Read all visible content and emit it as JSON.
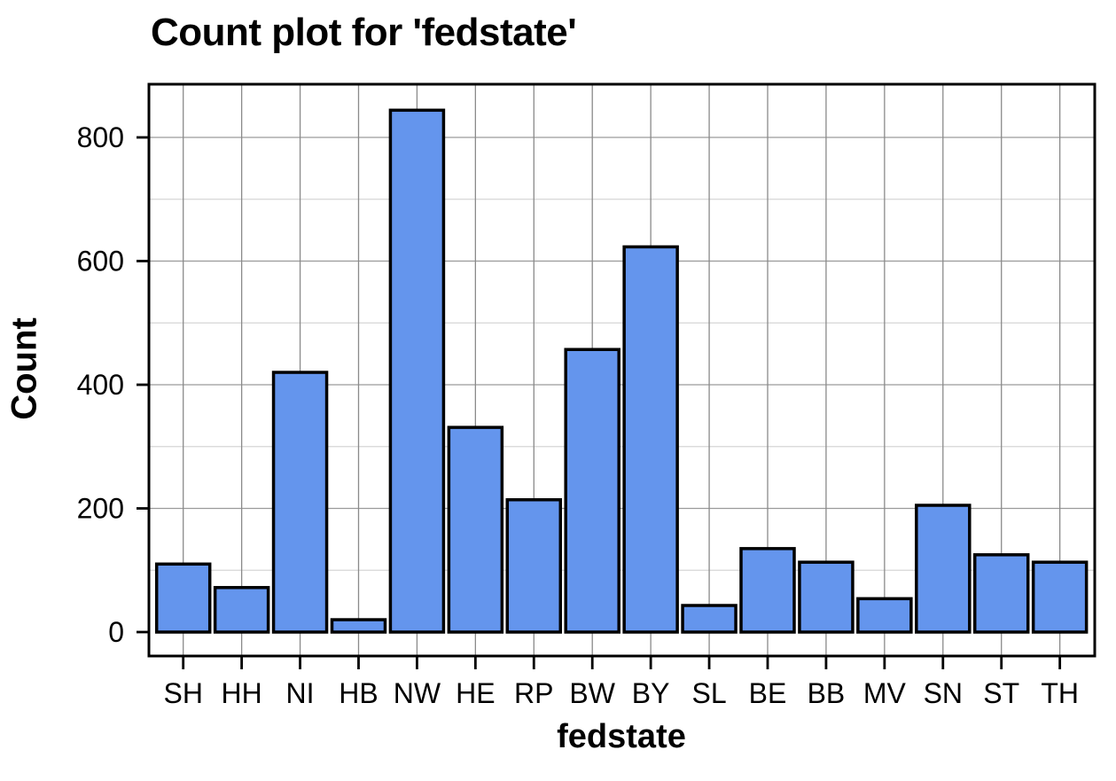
{
  "chart_data": {
    "type": "bar",
    "title": "Count plot for 'fedstate'",
    "xlabel": "fedstate",
    "ylabel": "Count",
    "categories": [
      "SH",
      "HH",
      "NI",
      "HB",
      "NW",
      "HE",
      "RP",
      "BW",
      "BY",
      "SL",
      "BE",
      "BB",
      "MV",
      "SN",
      "ST",
      "TH"
    ],
    "values": [
      110,
      72,
      420,
      20,
      844,
      331,
      214,
      457,
      623,
      43,
      135,
      113,
      54,
      205,
      125,
      113
    ],
    "yticks": [
      0,
      200,
      400,
      600,
      800
    ],
    "grid_minor_levels": [
      100,
      300,
      500,
      700
    ],
    "ylim": [
      -39,
      886
    ],
    "grid": "on",
    "legend": "none",
    "colors": {
      "bar_fill": "#6495ED",
      "bar_stroke": "#000000",
      "grid_major": "#9a9a9a",
      "grid_minor": "#d6d6d6",
      "grid_vertical": "#8a8a8a",
      "axis_text": "#000000",
      "panel_border": "#000000",
      "background": "#ffffff"
    }
  }
}
